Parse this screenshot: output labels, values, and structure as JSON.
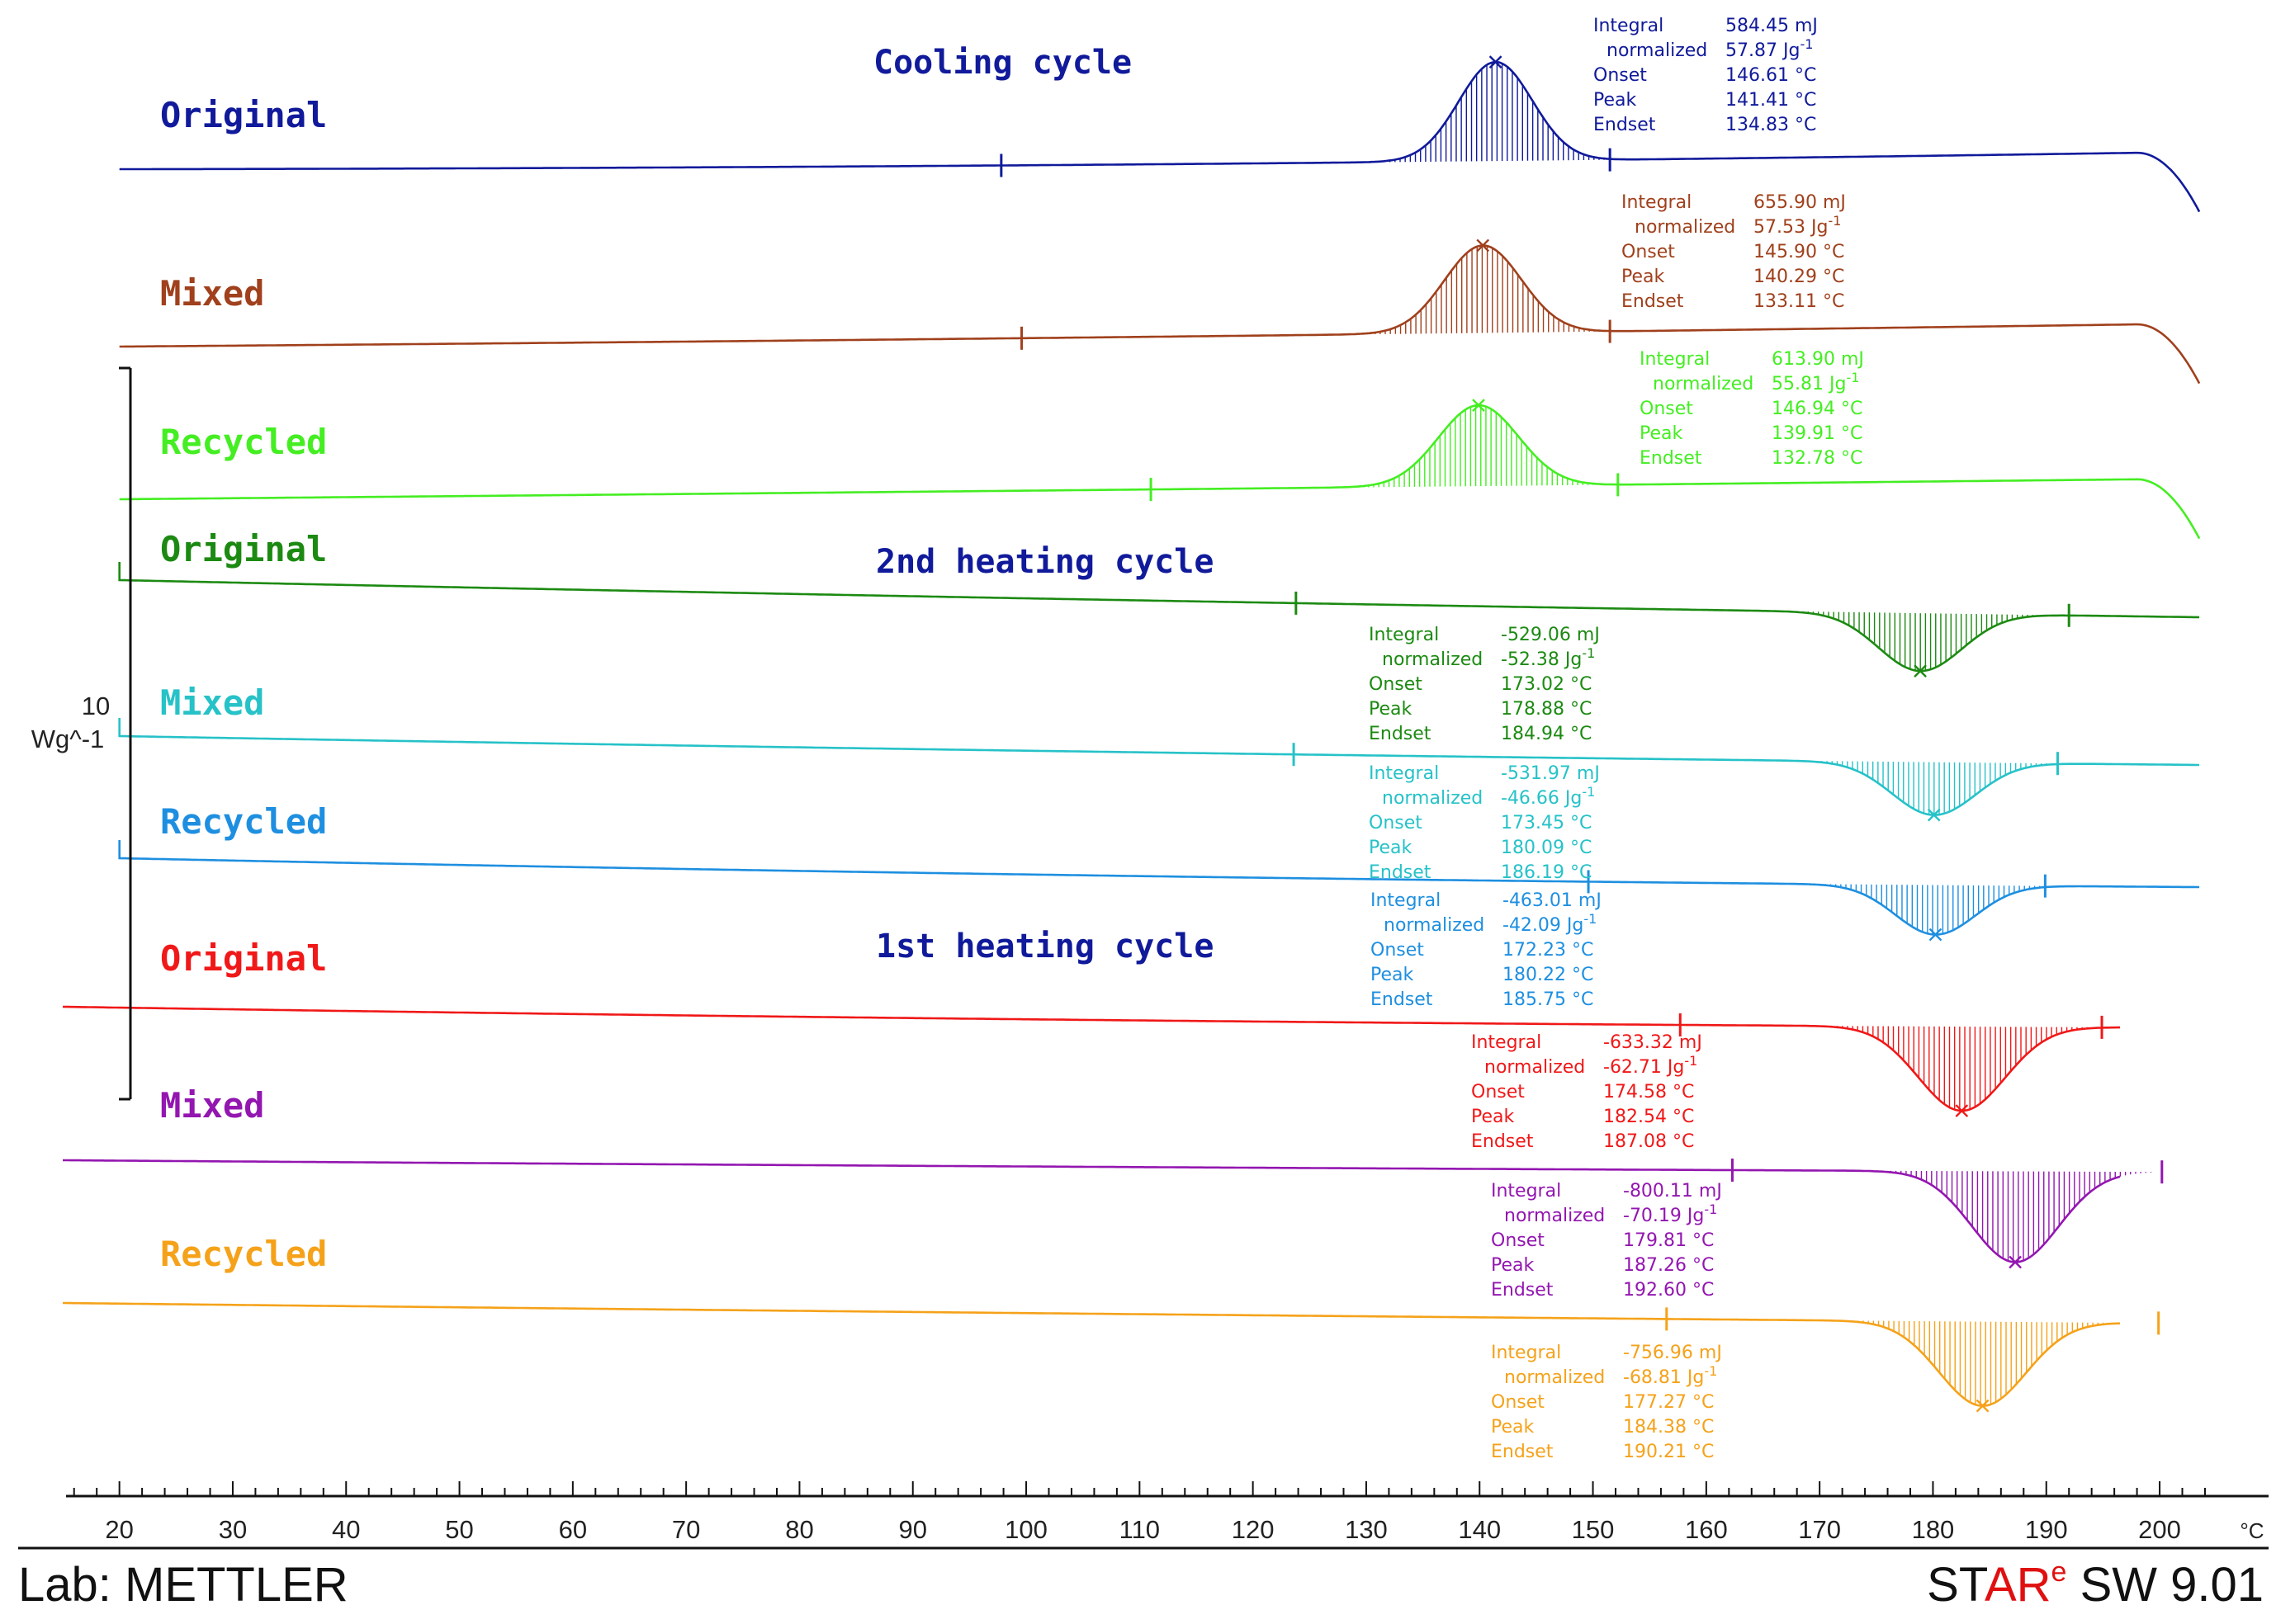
{
  "chart_data": {
    "type": "line",
    "title": "",
    "xlabel": "°C",
    "xlim": [
      15,
      205
    ],
    "x_ticks": [
      20,
      30,
      40,
      50,
      60,
      70,
      80,
      90,
      100,
      110,
      120,
      130,
      140,
      150,
      160,
      170,
      180,
      190,
      200
    ],
    "x_unit": "°C",
    "scale_bar": {
      "value": "10",
      "unit": "Wg^-1"
    },
    "cycle_labels": [
      "Cooling cycle",
      "2nd heating cycle",
      "1st heating cycle"
    ],
    "series": [
      {
        "name": "Original",
        "cycle": "Cooling cycle",
        "color": "#101a9a",
        "baseline_start_C": 20,
        "peak_direction": "up",
        "integration_range_C": [
          97.8,
          151.5
        ],
        "annotation": {
          "Integral": "584.45 mJ",
          "normalized": "57.87 Jg",
          "Onset": "146.61 °C",
          "Peak": "141.41 °C",
          "Endset": "134.83 °C"
        }
      },
      {
        "name": "Mixed",
        "cycle": "Cooling cycle",
        "color": "#a0401c",
        "baseline_start_C": 20,
        "peak_direction": "up",
        "integration_range_C": [
          99.6,
          151.5
        ],
        "annotation": {
          "Integral": "655.90 mJ",
          "normalized": "57.53 Jg",
          "Onset": "145.90 °C",
          "Peak": "140.29 °C",
          "Endset": "133.11 °C"
        }
      },
      {
        "name": "Recycled",
        "cycle": "Cooling cycle",
        "color": "#44ee22",
        "baseline_start_C": 20,
        "peak_direction": "up",
        "integration_range_C": [
          111,
          152.2
        ],
        "annotation": {
          "Integral": "613.90 mJ",
          "normalized": "55.81 Jg",
          "Onset": "146.94 °C",
          "Peak": "139.91 °C",
          "Endset": "132.78 °C"
        }
      },
      {
        "name": "Original",
        "cycle": "2nd heating cycle",
        "color": "#1c8a12",
        "baseline_start_C": 20,
        "peak_direction": "down",
        "integration_range_C": [
          123.8,
          192
        ],
        "annotation": {
          "Integral": "-529.06 mJ",
          "normalized": "-52.38 Jg",
          "Onset": "173.02 °C",
          "Peak": "178.88 °C",
          "Endset": "184.94 °C"
        }
      },
      {
        "name": "Mixed",
        "cycle": "2nd heating cycle",
        "color": "#26c2c8",
        "baseline_start_C": 20,
        "peak_direction": "down",
        "integration_range_C": [
          123.6,
          191
        ],
        "annotation": {
          "Integral": "-531.97 mJ",
          "normalized": "-46.66 Jg",
          "Onset": "173.45 °C",
          "Peak": "180.09 °C",
          "Endset": "186.19 °C"
        }
      },
      {
        "name": "Recycled",
        "cycle": "2nd heating cycle",
        "color": "#1e8fe0",
        "baseline_start_C": 20,
        "peak_direction": "down",
        "integration_range_C": [
          149.6,
          189.9
        ],
        "annotation": {
          "Integral": "-463.01 mJ",
          "normalized": "-42.09 Jg",
          "Onset": "172.23 °C",
          "Peak": "180.22 °C",
          "Endset": "185.75 °C"
        }
      },
      {
        "name": "Original",
        "cycle": "1st heating cycle",
        "color": "#f01818",
        "baseline_start_C": 15,
        "peak_direction": "down",
        "integration_range_C": [
          157.7,
          194.9
        ],
        "annotation": {
          "Integral": "-633.32 mJ",
          "normalized": "-62.71 Jg",
          "Onset": "174.58 °C",
          "Peak": "182.54 °C",
          "Endset": "187.08 °C"
        }
      },
      {
        "name": "Mixed",
        "cycle": "1st heating cycle",
        "color": "#9316b0",
        "baseline_start_C": 15,
        "peak_direction": "down",
        "integration_range_C": [
          162.3,
          200.2
        ],
        "annotation": {
          "Integral": "-800.11 mJ",
          "normalized": "-70.19 Jg",
          "Onset": "179.81 °C",
          "Peak": "187.26 °C",
          "Endset": "192.60 °C"
        }
      },
      {
        "name": "Recycled",
        "cycle": "1st heating cycle",
        "color": "#f5a21a",
        "baseline_start_C": 15,
        "peak_direction": "down",
        "integration_range_C": [
          156.5,
          199.9
        ],
        "annotation": {
          "Integral": "-756.96 mJ",
          "normalized": "-68.81 Jg",
          "Onset": "177.27 °C",
          "Peak": "184.38 °C",
          "Endset": "190.21 °C"
        }
      }
    ]
  },
  "footer": {
    "lab": "Lab: METTLER",
    "brand_st": "ST",
    "brand_ar": "AR",
    "brand_e": "e",
    "brand_version": " SW 9.01",
    "brand_accent_color": "#e01010"
  },
  "annotation_keys": [
    "Integral",
    "normalized",
    "Onset",
    "Peak",
    "Endset"
  ],
  "normalized_exponent": "-1"
}
